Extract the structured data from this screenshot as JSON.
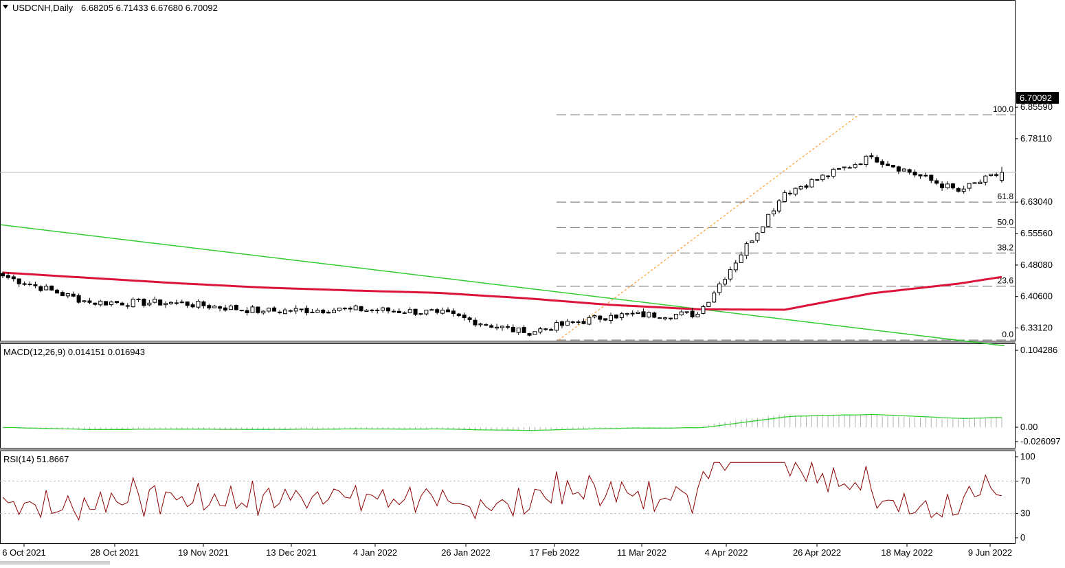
{
  "header": {
    "symbol": "USDCNH,Daily",
    "ohlc": "6.68205 6.71433 6.67680 6.70092"
  },
  "price_axis": {
    "ticks": [
      "6.85590",
      "6.78110",
      "6.63040",
      "6.55560",
      "6.48080",
      "6.40600",
      "6.33120"
    ],
    "current_price": "6.70092"
  },
  "macd_panel": {
    "label": "MACD(12,26,9) 0.014151 0.016943",
    "ticks": [
      "0.104286",
      "0.00",
      "-0.026097"
    ]
  },
  "rsi_panel": {
    "label": "RSI(14) 51.8667",
    "ticks": [
      "100",
      "70",
      "30",
      "0"
    ]
  },
  "time_axis": {
    "labels": [
      "6 Oct 2021",
      "28 Oct 2021",
      "19 Nov 2021",
      "13 Dec 2021",
      "4 Jan 2022",
      "26 Jan 2022",
      "17 Feb 2022",
      "11 Mar 2022",
      "4 Apr 2022",
      "26 Apr 2022",
      "18 May 2022",
      "9 Jun 2022"
    ]
  },
  "fibonacci": {
    "levels": [
      {
        "label": "100.0",
        "price": 6.838
      },
      {
        "label": "61.8",
        "price": 6.6304
      },
      {
        "label": "50.0",
        "price": 6.5697
      },
      {
        "label": "38.2",
        "price": 6.5094
      },
      {
        "label": "23.6",
        "price": 6.4306
      },
      {
        "label": "0.0",
        "price": 6.3025
      }
    ]
  },
  "colors": {
    "candle": "#000000",
    "moving_average": "#dc143c",
    "trendline": "#32cd32",
    "macd_signal": "#32cd32",
    "macd_histogram": "#b0b0b0",
    "rsi_line": "#8b0000",
    "fib_line": "#808080",
    "fib_diagonal": "#ff8c00",
    "current_price_line": "#b0bec5"
  },
  "chart_data": {
    "type": "candlestick",
    "symbol": "USDCNH",
    "timeframe": "Daily",
    "x_labels": [
      "6 Oct 2021",
      "28 Oct 2021",
      "19 Nov 2021",
      "13 Dec 2021",
      "4 Jan 2022",
      "26 Jan 2022",
      "17 Feb 2022",
      "11 Mar 2022",
      "4 Apr 2022",
      "26 Apr 2022",
      "18 May 2022",
      "9 Jun 2022"
    ],
    "ylim": [
      6.3,
      6.86
    ],
    "y_ticks": [
      6.8559,
      6.7811,
      6.6304,
      6.5556,
      6.4808,
      6.406,
      6.3312
    ],
    "last": {
      "open": 6.68205,
      "high": 6.71433,
      "low": 6.6768,
      "close": 6.70092
    },
    "close_path": [
      {
        "date": "6 Oct 2021",
        "close": 6.455
      },
      {
        "date": "28 Oct 2021",
        "close": 6.392
      },
      {
        "date": "19 Nov 2021",
        "close": 6.391
      },
      {
        "date": "13 Dec 2021",
        "close": 6.371
      },
      {
        "date": "4 Jan 2022",
        "close": 6.376
      },
      {
        "date": "26 Jan 2022",
        "close": 6.368
      },
      {
        "date": "17 Feb 2022",
        "close": 6.32
      },
      {
        "date": "11 Mar 2022",
        "close": 6.361
      },
      {
        "date": "4 Apr 2022",
        "close": 6.364
      },
      {
        "date": "26 Apr 2022",
        "close": 6.653
      },
      {
        "date": "18 May 2022",
        "close": 6.738
      },
      {
        "date": "9 Jun 2022",
        "close": 6.656
      },
      {
        "date": "last",
        "close": 6.70092
      }
    ],
    "moving_average": [
      {
        "date": "6 Oct 2021",
        "value": 6.4628
      },
      {
        "date": "28 Oct 2021",
        "value": 6.4502
      },
      {
        "date": "19 Nov 2021",
        "value": 6.4376
      },
      {
        "date": "13 Dec 2021",
        "value": 6.4273
      },
      {
        "date": "4 Jan 2022",
        "value": 6.4204
      },
      {
        "date": "26 Jan 2022",
        "value": 6.4147
      },
      {
        "date": "17 Feb 2022",
        "value": 6.4021
      },
      {
        "date": "11 Mar 2022",
        "value": 6.386
      },
      {
        "date": "4 Apr 2022",
        "value": 6.3756
      },
      {
        "date": "26 Apr 2022",
        "value": 6.3745
      },
      {
        "date": "18 May 2022",
        "value": 6.4135
      },
      {
        "date": "9 Jun 2022",
        "value": 6.4365
      },
      {
        "date": "last",
        "value": 6.4525
      }
    ],
    "trendline": {
      "start": 6.5765,
      "end": 6.2887
    },
    "macd": {
      "params": "12,26,9",
      "main": 0.014151,
      "signal": 0.016943,
      "ylim": [
        -0.026097,
        0.104286
      ]
    },
    "rsi": {
      "period": 14,
      "value": 51.8667,
      "levels": [
        70,
        30
      ],
      "ylim": [
        0,
        100
      ]
    }
  }
}
